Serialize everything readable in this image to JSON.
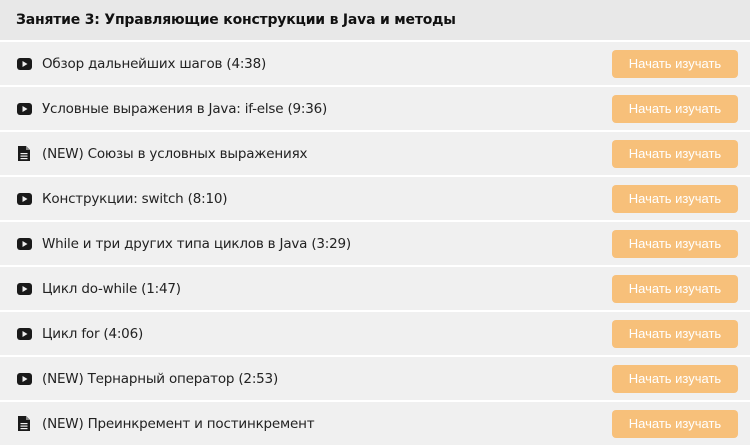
{
  "header": {
    "title": "Занятие 3: Управляющие конструкции в Java и методы"
  },
  "colors": {
    "button": "#f7c07a",
    "row_bg": "#f0f0f0",
    "header_bg": "#e8e8e8"
  },
  "lessons": [
    {
      "icon": "video",
      "title": "Обзор дальнейших шагов (4:38)",
      "button": "Начать изучать"
    },
    {
      "icon": "video",
      "title": "Условные выражения в Java: if-else (9:36)",
      "button": "Начать изучать"
    },
    {
      "icon": "document",
      "title": "(NEW) Союзы в условных выражениях",
      "button": "Начать изучать"
    },
    {
      "icon": "video",
      "title": "Конструкции: switch (8:10)",
      "button": "Начать изучать"
    },
    {
      "icon": "video",
      "title": "While и три других типа циклов в Java (3:29)",
      "button": "Начать изучать"
    },
    {
      "icon": "video",
      "title": "Цикл do-while (1:47)",
      "button": "Начать изучать"
    },
    {
      "icon": "video",
      "title": "Цикл for (4:06)",
      "button": "Начать изучать"
    },
    {
      "icon": "video",
      "title": "(NEW) Тернарный оператор (2:53)",
      "button": "Начать изучать"
    },
    {
      "icon": "document",
      "title": "(NEW) Преинкремент и постинкремент",
      "button": "Начать изучать"
    }
  ]
}
